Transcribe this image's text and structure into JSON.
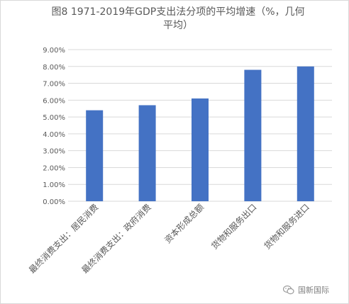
{
  "title": "图8 1971-2019年GDP支出法分项的平均增速（%，几何平均）",
  "watermark": "国新国际",
  "colors": {
    "bar": "#4472c4",
    "grid": "#d9d9d9",
    "text": "#595959"
  },
  "chart_data": {
    "type": "bar",
    "title": "图8 1971-2019年GDP支出法分项的平均增速（%，几何平均）",
    "categories": [
      "最终消费支出：居民消费",
      "最终消费支出：政府消费",
      "资本形成总额",
      "货物和服务出口",
      "货物和服务进口"
    ],
    "values": [
      5.4,
      5.7,
      6.1,
      7.8,
      8.0
    ],
    "ylim": [
      0,
      9
    ],
    "yticks": [
      "0.00%",
      "1.00%",
      "2.00%",
      "3.00%",
      "4.00%",
      "5.00%",
      "6.00%",
      "7.00%",
      "8.00%",
      "9.00%"
    ],
    "xlabel": "",
    "ylabel": "",
    "grid": true,
    "legend": "none"
  }
}
